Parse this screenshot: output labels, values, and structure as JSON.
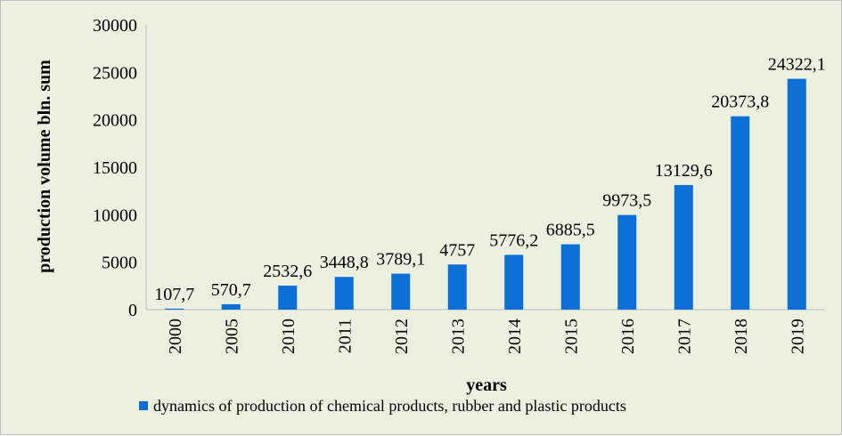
{
  "chart_data": {
    "type": "bar",
    "title": "",
    "xlabel": "years",
    "ylabel": "production volume bln. sum",
    "categories": [
      "2000",
      "2005",
      "2010",
      "2011",
      "2012",
      "2013",
      "2014",
      "2015",
      "2016",
      "2017",
      "2018",
      "2019"
    ],
    "series": [
      {
        "name": "dynamics of production of chemical products, rubber and plastic products",
        "values": [
          107.7,
          570.7,
          2532.6,
          3448.8,
          3789.1,
          4757,
          5776.2,
          6885.5,
          9973.5,
          13129.6,
          20373.8,
          24322.1
        ],
        "labels": [
          "107,7",
          "570,7",
          "2532,6",
          "3448,8",
          "3789,1",
          "4757",
          "5776,2",
          "6885,5",
          "9973,5",
          "13129,6",
          "20373,8",
          "24322,1"
        ],
        "color": "#0b6fd6"
      }
    ],
    "ylim": [
      0,
      30000
    ],
    "yticks": [
      0,
      5000,
      10000,
      15000,
      20000,
      25000,
      30000
    ],
    "grid": false,
    "legend_position": "bottom"
  },
  "colors": {
    "background": "#ebf1de",
    "border": "#bfbfbf",
    "axis": "#bfbfbf",
    "bar": "#0b6fd6"
  }
}
